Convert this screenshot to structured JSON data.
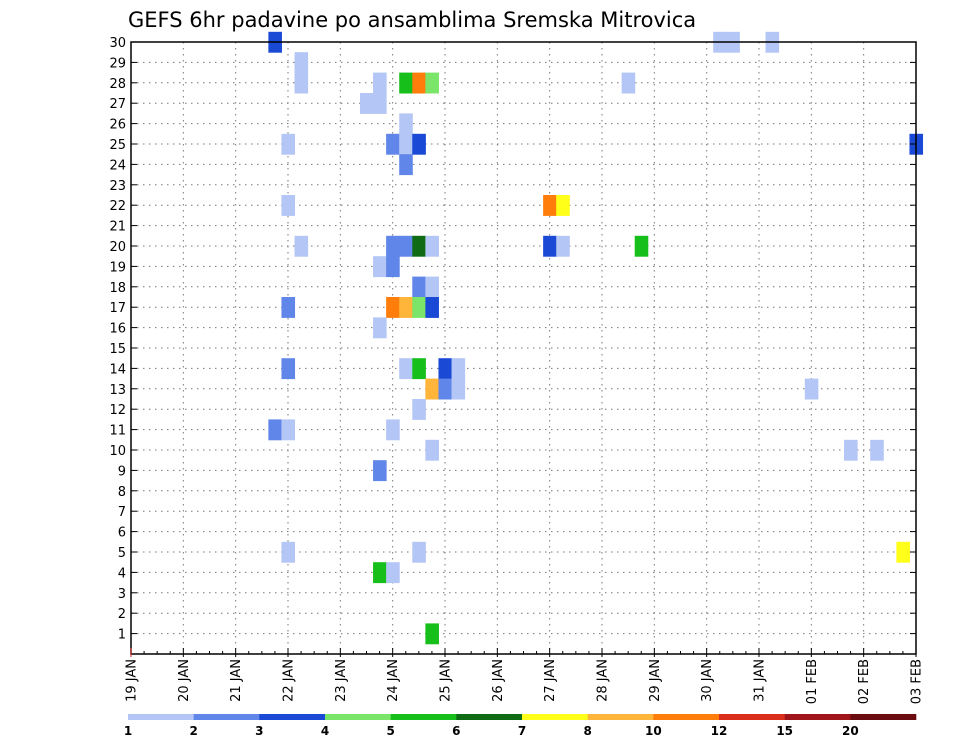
{
  "chart_data": {
    "type": "heatmap",
    "title": "GEFS 6hr padavine po ansamblima Sremska Mitrovica",
    "xlabel": "",
    "ylabel": "",
    "x_tick_labels": [
      "19 JAN",
      "20 JAN",
      "21 JAN",
      "22 JAN",
      "23 JAN",
      "24 JAN",
      "25 JAN",
      "26 JAN",
      "27 JAN",
      "28 JAN",
      "29 JAN",
      "30 JAN",
      "31 JAN",
      "01 FEB",
      "02 FEB",
      "03 FEB"
    ],
    "x_range_steps": [
      0,
      60
    ],
    "step_hours": 6,
    "y_tick_labels": [
      "1",
      "2",
      "3",
      "4",
      "5",
      "6",
      "7",
      "8",
      "9",
      "10",
      "11",
      "12",
      "13",
      "14",
      "15",
      "16",
      "17",
      "18",
      "19",
      "20",
      "21",
      "22",
      "23",
      "24",
      "25",
      "26",
      "27",
      "28",
      "29",
      "30"
    ],
    "y_range": [
      0,
      30
    ],
    "grid": true,
    "colorbar": {
      "position": "bottom",
      "labels": [
        "1",
        "2",
        "3",
        "4",
        "5",
        "6",
        "7",
        "8",
        "10",
        "12",
        "15",
        "20"
      ],
      "colors": [
        "#b4c6f5",
        "#5f86e8",
        "#1a49d6",
        "#7be56a",
        "#16bf1a",
        "#0f6b14",
        "#ffff19",
        "#ffb43a",
        "#ff7d0b",
        "#db2e1b",
        "#a0151a",
        "#6b0d10"
      ]
    },
    "cells": [
      {
        "t": 11,
        "m": 30,
        "c": 3
      },
      {
        "t": 45,
        "m": 30,
        "c": 1
      },
      {
        "t": 46,
        "m": 30,
        "c": 1
      },
      {
        "t": 49,
        "m": 30,
        "c": 1
      },
      {
        "t": 13,
        "m": 29,
        "c": 1
      },
      {
        "t": 13,
        "m": 28,
        "c": 1
      },
      {
        "t": 19,
        "m": 28,
        "c": 1
      },
      {
        "t": 21,
        "m": 28,
        "c": 5
      },
      {
        "t": 22,
        "m": 28,
        "c": 9
      },
      {
        "t": 23,
        "m": 28,
        "c": 4
      },
      {
        "t": 38,
        "m": 28,
        "c": 1
      },
      {
        "t": 18,
        "m": 27,
        "c": 1
      },
      {
        "t": 19,
        "m": 27,
        "c": 1
      },
      {
        "t": 21,
        "m": 26,
        "c": 1
      },
      {
        "t": 12,
        "m": 25,
        "c": 1
      },
      {
        "t": 20,
        "m": 25,
        "c": 2
      },
      {
        "t": 21,
        "m": 25,
        "c": 1
      },
      {
        "t": 22,
        "m": 25,
        "c": 3
      },
      {
        "t": 60,
        "m": 25,
        "c": 3
      },
      {
        "t": 21,
        "m": 24,
        "c": 2
      },
      {
        "t": 12,
        "m": 22,
        "c": 1
      },
      {
        "t": 32,
        "m": 22,
        "c": 9
      },
      {
        "t": 33,
        "m": 22,
        "c": 7
      },
      {
        "t": 13,
        "m": 20,
        "c": 1
      },
      {
        "t": 20,
        "m": 20,
        "c": 2
      },
      {
        "t": 21,
        "m": 20,
        "c": 2
      },
      {
        "t": 22,
        "m": 20,
        "c": 6
      },
      {
        "t": 23,
        "m": 20,
        "c": 1
      },
      {
        "t": 32,
        "m": 20,
        "c": 3
      },
      {
        "t": 33,
        "m": 20,
        "c": 1
      },
      {
        "t": 39,
        "m": 20,
        "c": 5
      },
      {
        "t": 19,
        "m": 19,
        "c": 1
      },
      {
        "t": 20,
        "m": 19,
        "c": 2
      },
      {
        "t": 22,
        "m": 18,
        "c": 2
      },
      {
        "t": 23,
        "m": 18,
        "c": 1
      },
      {
        "t": 12,
        "m": 17,
        "c": 2
      },
      {
        "t": 20,
        "m": 17,
        "c": 9
      },
      {
        "t": 21,
        "m": 17,
        "c": 8
      },
      {
        "t": 22,
        "m": 17,
        "c": 4
      },
      {
        "t": 23,
        "m": 17,
        "c": 3
      },
      {
        "t": 19,
        "m": 16,
        "c": 1
      },
      {
        "t": 12,
        "m": 14,
        "c": 2
      },
      {
        "t": 21,
        "m": 14,
        "c": 1
      },
      {
        "t": 22,
        "m": 14,
        "c": 5
      },
      {
        "t": 24,
        "m": 14,
        "c": 3
      },
      {
        "t": 25,
        "m": 14,
        "c": 1
      },
      {
        "t": 23,
        "m": 13,
        "c": 8
      },
      {
        "t": 24,
        "m": 13,
        "c": 2
      },
      {
        "t": 25,
        "m": 13,
        "c": 1
      },
      {
        "t": 52,
        "m": 13,
        "c": 1
      },
      {
        "t": 22,
        "m": 12,
        "c": 1
      },
      {
        "t": 11,
        "m": 11,
        "c": 2
      },
      {
        "t": 12,
        "m": 11,
        "c": 1
      },
      {
        "t": 20,
        "m": 11,
        "c": 1
      },
      {
        "t": 23,
        "m": 10,
        "c": 1
      },
      {
        "t": 55,
        "m": 10,
        "c": 1
      },
      {
        "t": 57,
        "m": 10,
        "c": 1
      },
      {
        "t": 19,
        "m": 9,
        "c": 2
      },
      {
        "t": 12,
        "m": 5,
        "c": 1
      },
      {
        "t": 22,
        "m": 5,
        "c": 1
      },
      {
        "t": 59,
        "m": 5,
        "c": 7
      },
      {
        "t": 19,
        "m": 4,
        "c": 5
      },
      {
        "t": 20,
        "m": 4,
        "c": 1
      },
      {
        "t": 23,
        "m": 1,
        "c": 5
      }
    ]
  }
}
